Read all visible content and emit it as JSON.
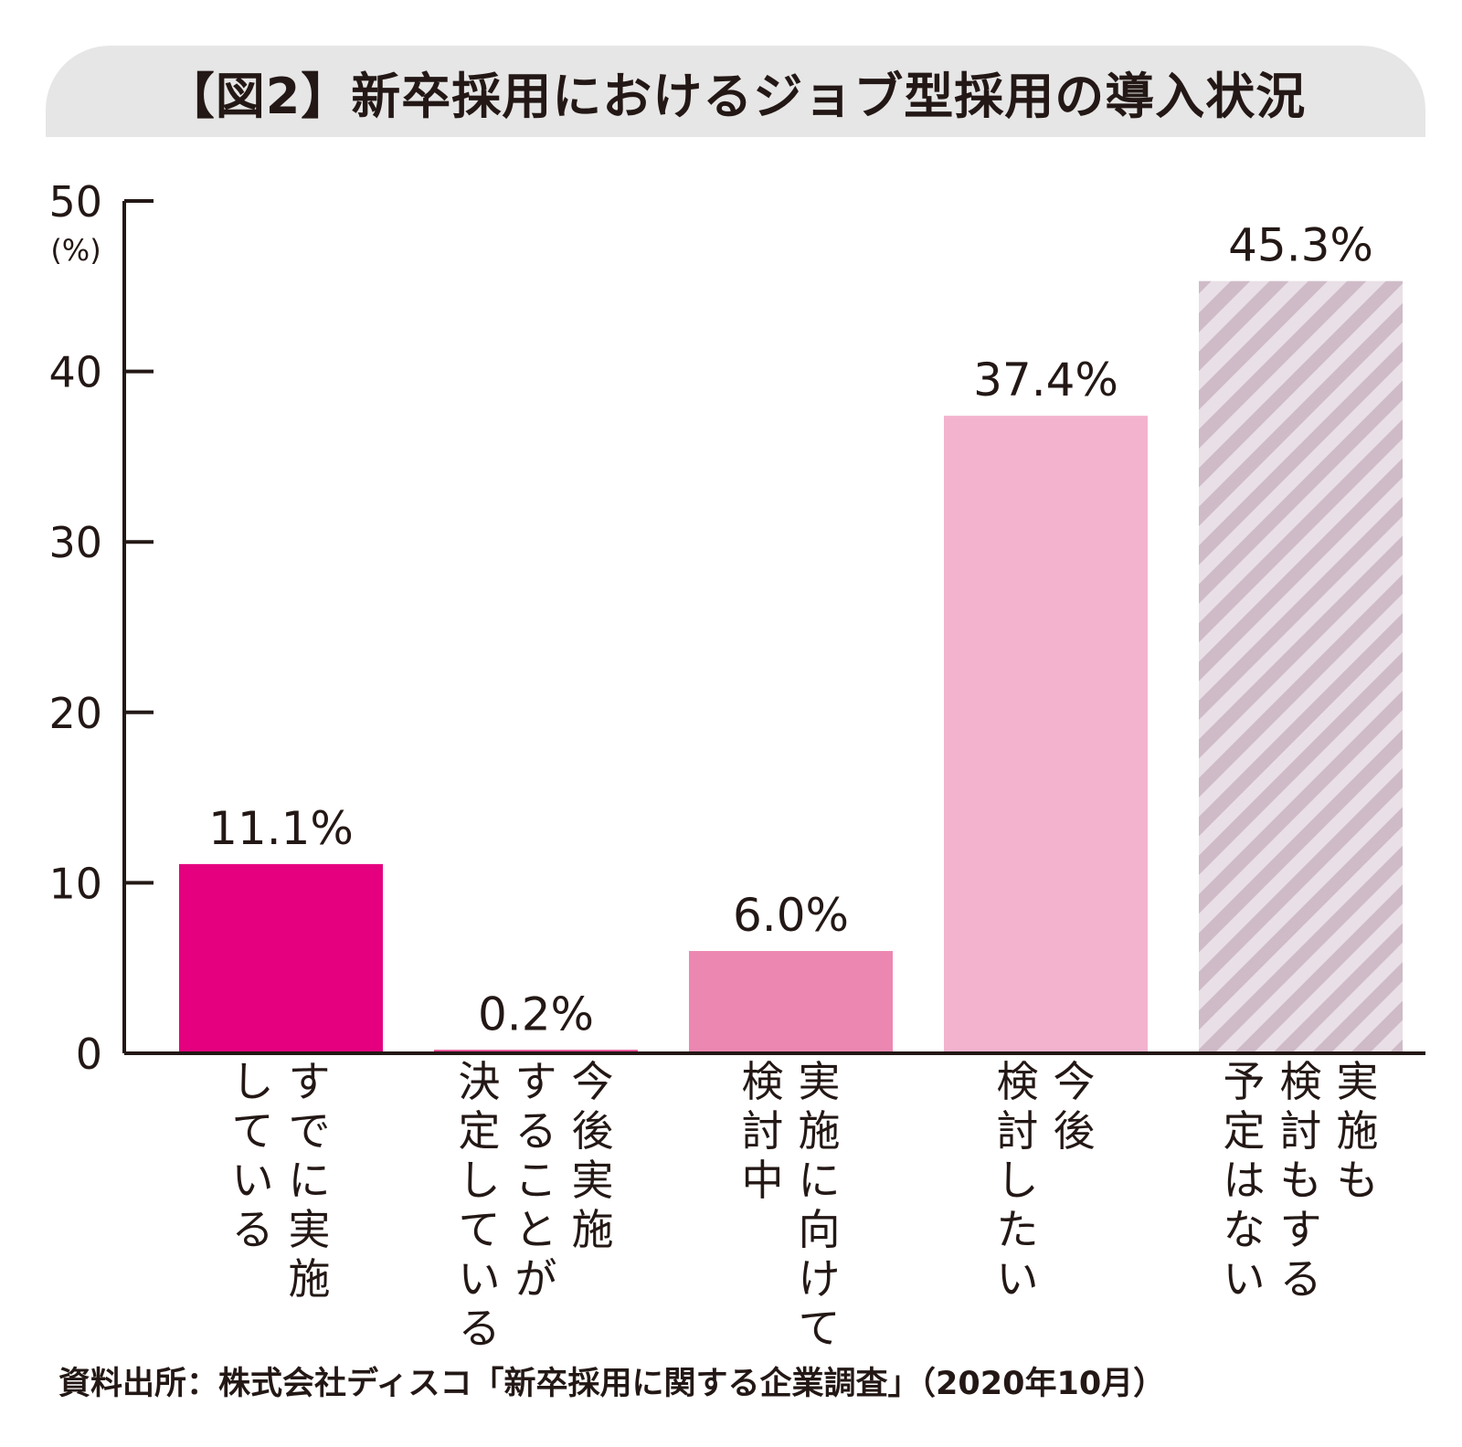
{
  "title": "【図2】新卒採用におけるジョブ型採用の導入状況",
  "source": "資料出所：株式会社ディスコ「新卒採用に関する企業調査」（2020年10月）",
  "chart_data": {
    "type": "bar",
    "title": "【図2】新卒採用におけるジョブ型採用の導入状況",
    "ylabel": "(%)",
    "ylim": [
      0,
      50
    ],
    "yticks": [
      0,
      10,
      20,
      30,
      40,
      50
    ],
    "categories": [
      [
        "すでに実施",
        "している"
      ],
      [
        "今後実施",
        "することが",
        "決定している"
      ],
      [
        "実施に向けて",
        "検討中"
      ],
      [
        "今後",
        "検討したい"
      ],
      [
        "実施も",
        "検討もする",
        "予定はない"
      ]
    ],
    "values": [
      11.1,
      0.2,
      6.0,
      37.4,
      45.3
    ],
    "value_labels": [
      "11.1%",
      "0.2%",
      "6.0%",
      "37.4%",
      "45.3%"
    ],
    "colors": [
      "#e4007f",
      "#e8438f",
      "#ec87b1",
      "#f3b3cf",
      "#d5c3cf"
    ],
    "hatched": [
      false,
      false,
      false,
      false,
      true
    ],
    "grid": false
  }
}
